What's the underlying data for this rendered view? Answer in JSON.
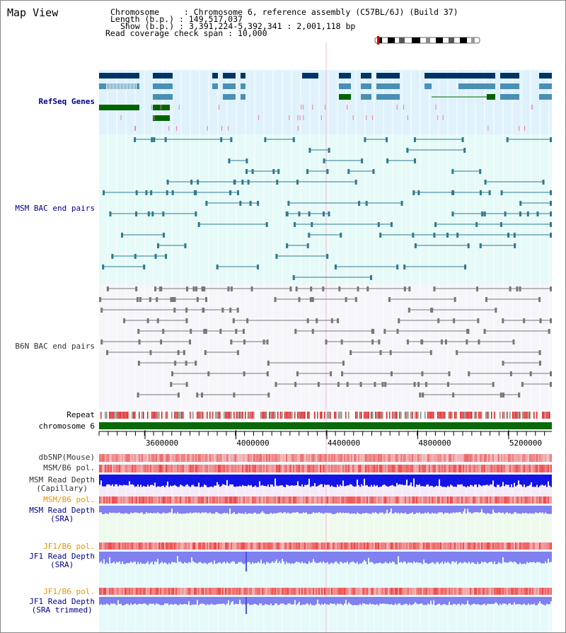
{
  "header": {
    "title": "Map View",
    "chromosome_key": "Chromosome",
    "chromosome_value": "Chromosome 6, reference assembly (C57BL/6J) (Build 37)",
    "length_key": "Length (b.p.)",
    "length_value": "149,517,037",
    "show_key": "Show (b.p.)",
    "show_value": "3,391,224-5,392,341 : 2,001,118 bp",
    "coverage_key": "Read coverage check span",
    "coverage_value": "10,000"
  },
  "tracks": {
    "refseq": "RefSeq Genes",
    "msm_bac": "MSM BAC end pairs",
    "b6n_bac": "B6N BAC end pairs",
    "repeat": "Repeat",
    "chromosome": "chromosome 6",
    "dbsnp": "dbSNP(Mouse)",
    "msm_b6_pol": "MSM/B6 pol.",
    "msm_depth_cap_1": "MSM Read Depth",
    "msm_depth_cap_2": "(Capillary)",
    "msm_b6_pol2": "MSM/B6 pol.",
    "msm_depth_sra_1": "MSM Read Depth",
    "msm_depth_sra_2": "(SRA)",
    "jf1_b6_pol": "JF1/B6 pol.",
    "jf1_depth_sra_1": "JF1 Read Depth",
    "jf1_depth_sra_2": "(SRA)",
    "jf1_b6_pol2": "JF1/B6 pol.",
    "jf1_depth_trim_1": "JF1 Read Depth",
    "jf1_depth_trim_2": "(SRA trimmed)"
  },
  "axis": {
    "ticks": [
      "3600000",
      "4000000",
      "4400000",
      "4800000",
      "5200000"
    ]
  },
  "colors": {
    "refseq_bg": "#dff2fb",
    "msm_bg": "#e6faf8",
    "b6n_bg": "#f5f5fa",
    "gene_navy": "#003366",
    "gene_teal": "#4a8fb4",
    "gene_green": "#006400",
    "bac_line": "#2f7a8f",
    "b6n_line": "#777777",
    "chrom_green": "#0a6a0a",
    "pol_red": "#f03c3c",
    "depth_blue": "#1414e6",
    "depth_lavender": "#8080f0"
  }
}
